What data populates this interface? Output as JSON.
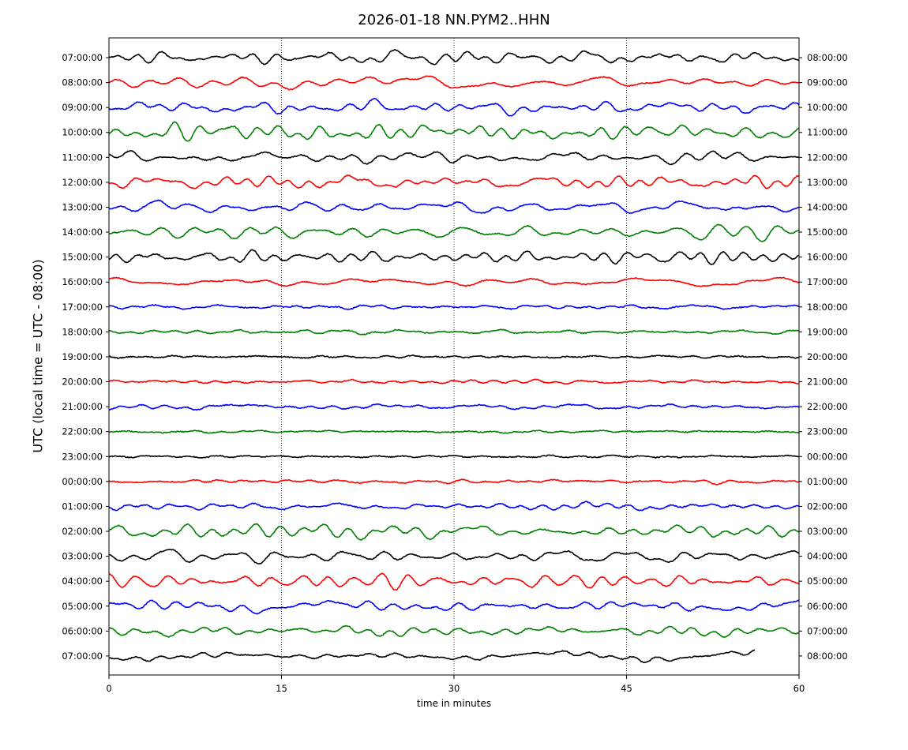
{
  "chart_data": {
    "type": "line",
    "title": "2026-01-18 NN.PYM2..HHN",
    "xlabel": "time in minutes",
    "ylabel": "UTC (local time = UTC - 08:00)",
    "xlim": [
      0,
      60
    ],
    "x_ticks": [
      "0",
      "15",
      "30",
      "45",
      "60"
    ],
    "x_tick_values": [
      0,
      15,
      30,
      45,
      60
    ],
    "vertical_gridlines_at": [
      15,
      30,
      45
    ],
    "grid": "dotted vertical at 15-minute intervals",
    "series_colors": [
      "#000000",
      "#ff0000",
      "#0000ff",
      "#008000"
    ],
    "left_tick_labels": [
      "07:00:00",
      "08:00:00",
      "09:00:00",
      "10:00:00",
      "11:00:00",
      "12:00:00",
      "13:00:00",
      "14:00:00",
      "15:00:00",
      "16:00:00",
      "17:00:00",
      "18:00:00",
      "19:00:00",
      "20:00:00",
      "21:00:00",
      "22:00:00",
      "23:00:00",
      "00:00:00",
      "01:00:00",
      "02:00:00",
      "03:00:00",
      "04:00:00",
      "05:00:00",
      "06:00:00",
      "07:00:00"
    ],
    "right_tick_labels": [
      "08:00:00",
      "09:00:00",
      "10:00:00",
      "11:00:00",
      "12:00:00",
      "13:00:00",
      "14:00:00",
      "15:00:00",
      "16:00:00",
      "17:00:00",
      "18:00:00",
      "19:00:00",
      "20:00:00",
      "21:00:00",
      "22:00:00",
      "23:00:00",
      "00:00:00",
      "01:00:00",
      "02:00:00",
      "03:00:00",
      "04:00:00",
      "05:00:00",
      "06:00:00",
      "07:00:00",
      "08:00:00"
    ],
    "trace_activity": [
      1.0,
      1.0,
      1.1,
      1.1,
      1.0,
      1.0,
      1.0,
      1.0,
      1.0,
      0.75,
      0.35,
      0.3,
      0.2,
      0.35,
      0.55,
      0.18,
      0.2,
      0.3,
      0.6,
      0.9,
      0.95,
      1.0,
      0.95,
      1.0,
      0.9
    ],
    "last_trace_end_minute": 56.2
  }
}
